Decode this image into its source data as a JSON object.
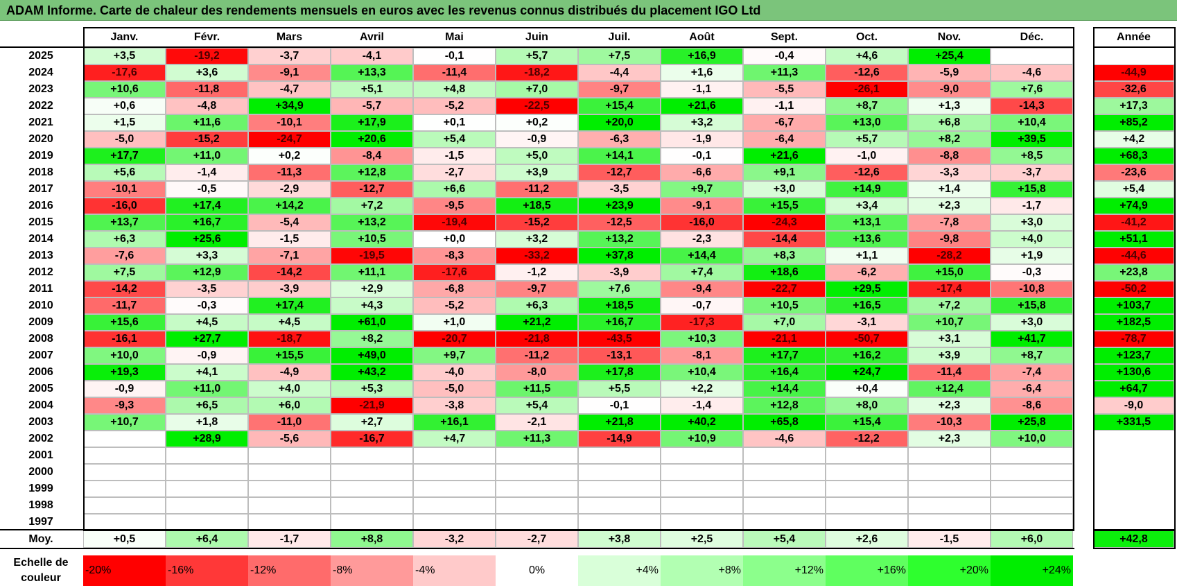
{
  "title": "ADAM Informe. Carte de chaleur des rendements mensuels en euros avec les revenus connus distribués du placement IGO Ltd",
  "chart_data": {
    "type": "heatmap",
    "title": "ADAM Informe. Carte de chaleur des rendements mensuels en euros avec les revenus connus distribués du placement IGO Ltd",
    "columns": [
      "Janv.",
      "Févr.",
      "Mars",
      "Avril",
      "Mai",
      "Juin",
      "Juil.",
      "Août",
      "Sept.",
      "Oct.",
      "Nov.",
      "Déc."
    ],
    "year_column_label": "Année",
    "rows": [
      {
        "year": "2025",
        "values": [
          "+3,5",
          "-19,2",
          "-3,7",
          "-4,1",
          "-0,1",
          "+5,7",
          "+7,5",
          "+16,9",
          "-0,4",
          "+4,6",
          "+25,4",
          ""
        ],
        "annual": ""
      },
      {
        "year": "2024",
        "values": [
          "-17,6",
          "+3,6",
          "-9,1",
          "+13,3",
          "-11,4",
          "-18,2",
          "-4,4",
          "+1,6",
          "+11,3",
          "-12,6",
          "-5,9",
          "-4,6"
        ],
        "annual": "-44,9"
      },
      {
        "year": "2023",
        "values": [
          "+10,6",
          "-11,8",
          "-4,7",
          "+5,1",
          "+4,8",
          "+7,0",
          "-9,7",
          "-1,1",
          "-5,5",
          "-26,1",
          "-9,0",
          "+7,6"
        ],
        "annual": "-32,6"
      },
      {
        "year": "2022",
        "values": [
          "+0,6",
          "-4,8",
          "+34,9",
          "-5,7",
          "-5,2",
          "-22,5",
          "+15,4",
          "+21,6",
          "-1,1",
          "+8,7",
          "+1,3",
          "-14,3"
        ],
        "annual": "+17,3"
      },
      {
        "year": "2021",
        "values": [
          "+1,5",
          "+11,6",
          "-10,1",
          "+17,9",
          "+0,1",
          "+0,2",
          "+20,0",
          "+3,2",
          "-6,7",
          "+13,0",
          "+6,8",
          "+10,4"
        ],
        "annual": "+85,2"
      },
      {
        "year": "2020",
        "values": [
          "-5,0",
          "-15,2",
          "-24,7",
          "+20,6",
          "+5,4",
          "-0,9",
          "-6,3",
          "-1,9",
          "-6,4",
          "+5,7",
          "+8,2",
          "+39,5"
        ],
        "annual": "+4,2"
      },
      {
        "year": "2019",
        "values": [
          "+17,7",
          "+11,0",
          "+0,2",
          "-8,4",
          "-1,5",
          "+5,0",
          "+14,1",
          "-0,1",
          "+21,6",
          "-1,0",
          "-8,8",
          "+8,5"
        ],
        "annual": "+68,3"
      },
      {
        "year": "2018",
        "values": [
          "+5,6",
          "-1,4",
          "-11,3",
          "+12,8",
          "-2,7",
          "+3,9",
          "-12,7",
          "-6,6",
          "+9,1",
          "-12,6",
          "-3,3",
          "-3,7"
        ],
        "annual": "-23,6"
      },
      {
        "year": "2017",
        "values": [
          "-10,1",
          "-0,5",
          "-2,9",
          "-12,7",
          "+6,6",
          "-11,2",
          "-3,5",
          "+9,7",
          "+3,0",
          "+14,9",
          "+1,4",
          "+15,8"
        ],
        "annual": "+5,4"
      },
      {
        "year": "2016",
        "values": [
          "-16,0",
          "+17,4",
          "+14,2",
          "+7,2",
          "-9,5",
          "+18,5",
          "+23,9",
          "-9,1",
          "+15,5",
          "+3,4",
          "+2,3",
          "-1,7"
        ],
        "annual": "+74,9"
      },
      {
        "year": "2015",
        "values": [
          "+13,7",
          "+16,7",
          "-5,4",
          "+13,2",
          "-19,4",
          "-15,2",
          "-12,5",
          "-16,0",
          "-24,3",
          "+13,1",
          "-7,8",
          "+3,0"
        ],
        "annual": "-41,2"
      },
      {
        "year": "2014",
        "values": [
          "+6,3",
          "+25,6",
          "-1,5",
          "+10,5",
          "+0,0",
          "+3,2",
          "+13,2",
          "-2,3",
          "-14,4",
          "+13,6",
          "-9,8",
          "+4,0"
        ],
        "annual": "+51,1"
      },
      {
        "year": "2013",
        "values": [
          "-7,6",
          "+3,3",
          "-7,1",
          "-19,5",
          "-8,3",
          "-33,2",
          "+37,8",
          "+14,4",
          "+8,3",
          "+1,1",
          "-28,2",
          "+1,9"
        ],
        "annual": "-44,6"
      },
      {
        "year": "2012",
        "values": [
          "+7,5",
          "+12,9",
          "-14,2",
          "+11,1",
          "-17,6",
          "-1,2",
          "-3,9",
          "+7,4",
          "+18,6",
          "-6,2",
          "+15,0",
          "-0,3"
        ],
        "annual": "+23,8"
      },
      {
        "year": "2011",
        "values": [
          "-14,2",
          "-3,5",
          "-3,9",
          "+2,9",
          "-6,8",
          "-9,7",
          "+7,6",
          "-9,4",
          "-22,7",
          "+29,5",
          "-17,4",
          "-10,8"
        ],
        "annual": "-50,2"
      },
      {
        "year": "2010",
        "values": [
          "-11,7",
          "-0,3",
          "+17,4",
          "+4,3",
          "-5,2",
          "+6,3",
          "+18,5",
          "-0,7",
          "+10,5",
          "+16,5",
          "+7,2",
          "+15,8"
        ],
        "annual": "+103,7"
      },
      {
        "year": "2009",
        "values": [
          "+15,6",
          "+4,5",
          "+4,5",
          "+61,0",
          "+1,0",
          "+21,2",
          "+16,7",
          "-17,3",
          "+7,0",
          "-3,1",
          "+10,7",
          "+3,0"
        ],
        "annual": "+182,5"
      },
      {
        "year": "2008",
        "values": [
          "-16,1",
          "+27,7",
          "-18,7",
          "+8,2",
          "-20,7",
          "-21,8",
          "-43,5",
          "+10,3",
          "-21,1",
          "-50,7",
          "+3,1",
          "+41,7"
        ],
        "annual": "-78,7"
      },
      {
        "year": "2007",
        "values": [
          "+10,0",
          "-0,9",
          "+15,5",
          "+49,0",
          "+9,7",
          "-11,2",
          "-13,1",
          "-8,1",
          "+17,7",
          "+16,2",
          "+3,9",
          "+8,7"
        ],
        "annual": "+123,7"
      },
      {
        "year": "2006",
        "values": [
          "+19,3",
          "+4,1",
          "-4,9",
          "+43,2",
          "-4,0",
          "-8,0",
          "+17,8",
          "+10,4",
          "+16,4",
          "+24,7",
          "-11,4",
          "-7,4"
        ],
        "annual": "+130,6"
      },
      {
        "year": "2005",
        "values": [
          "-0,9",
          "+11,0",
          "+4,0",
          "+5,3",
          "-5,0",
          "+11,5",
          "+5,5",
          "+2,2",
          "+14,4",
          "+0,4",
          "+12,4",
          "-6,4"
        ],
        "annual": "+64,7"
      },
      {
        "year": "2004",
        "values": [
          "-9,3",
          "+6,5",
          "+6,0",
          "-21,9",
          "-3,8",
          "+5,4",
          "-0,1",
          "-1,4",
          "+12,8",
          "+8,0",
          "+2,3",
          "-8,6"
        ],
        "annual": "-9,0"
      },
      {
        "year": "2003",
        "values": [
          "+10,7",
          "+1,8",
          "-11,0",
          "+2,7",
          "+16,1",
          "-2,1",
          "+21,8",
          "+40,2",
          "+65,8",
          "+15,4",
          "-10,3",
          "+25,8"
        ],
        "annual": "+331,5"
      },
      {
        "year": "2002",
        "values": [
          "",
          "+28,9",
          "-5,6",
          "-16,7",
          "+4,7",
          "+11,3",
          "-14,9",
          "+10,9",
          "-4,6",
          "-12,2",
          "+2,3",
          "+10,0"
        ],
        "annual": ""
      },
      {
        "year": "2001",
        "values": [
          "",
          "",
          "",
          "",
          "",
          "",
          "",
          "",
          "",
          "",
          "",
          ""
        ],
        "annual": ""
      },
      {
        "year": "2000",
        "values": [
          "",
          "",
          "",
          "",
          "",
          "",
          "",
          "",
          "",
          "",
          "",
          ""
        ],
        "annual": ""
      },
      {
        "year": "1999",
        "values": [
          "",
          "",
          "",
          "",
          "",
          "",
          "",
          "",
          "",
          "",
          "",
          ""
        ],
        "annual": ""
      },
      {
        "year": "1998",
        "values": [
          "",
          "",
          "",
          "",
          "",
          "",
          "",
          "",
          "",
          "",
          "",
          ""
        ],
        "annual": ""
      },
      {
        "year": "1997",
        "values": [
          "",
          "",
          "",
          "",
          "",
          "",
          "",
          "",
          "",
          "",
          "",
          ""
        ],
        "annual": ""
      }
    ],
    "average": {
      "label": "Moy.",
      "values": [
        "+0,5",
        "+6,4",
        "-1,7",
        "+8,8",
        "-3,2",
        "-2,7",
        "+3,8",
        "+2,5",
        "+5,4",
        "+2,6",
        "-1,5",
        "+6,0"
      ],
      "annual": "+42,8"
    },
    "color_scale": {
      "label": "Echelle de couleur",
      "steps": [
        "-20%",
        "-16%",
        "-12%",
        "-8%",
        "-4%",
        "0%",
        "+4%",
        "+8%",
        "+12%",
        "+16%",
        "+20%",
        "+24%"
      ],
      "colors": [
        "#ff0000",
        "#ff3838",
        "#ff6b6b",
        "#ff9a9a",
        "#ffcaca",
        "#ffffff",
        "#d9ffd9",
        "#b2ffb2",
        "#8cff8c",
        "#5fff5f",
        "#2eff2e",
        "#00ee00"
      ]
    }
  }
}
